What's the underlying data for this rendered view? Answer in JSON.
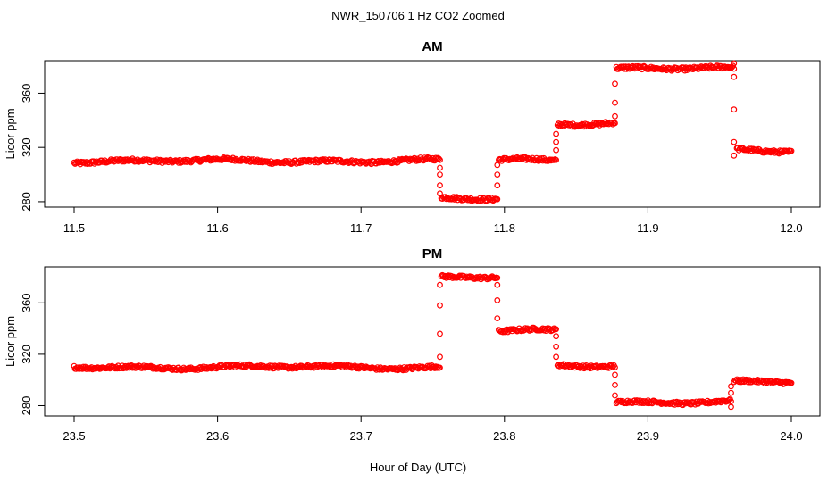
{
  "figure": {
    "title": "NWR_150706  1 Hz CO2 Zoomed",
    "xlabel": "Hour of Day (UTC)"
  },
  "chart_data": [
    {
      "type": "scatter",
      "title": "AM",
      "xlabel": "",
      "ylabel": "Licor ppm",
      "xlim": [
        11.5,
        12.0
      ],
      "ylim": [
        276,
        384
      ],
      "xticks": [
        "11.5",
        "11.6",
        "11.7",
        "11.8",
        "11.9",
        "12.0"
      ],
      "yticks": [
        "280",
        "320",
        "360"
      ],
      "marker": "open-circle",
      "color": "#ff0000",
      "segments": [
        {
          "x_start": 11.5,
          "x_end": 11.755,
          "y": 310
        },
        {
          "x_start": 11.756,
          "x_end": 11.795,
          "y": 282
        },
        {
          "x_start": 11.796,
          "x_end": 11.836,
          "y": 311
        },
        {
          "x_start": 11.837,
          "x_end": 11.877,
          "y": 338
        },
        {
          "x_start": 11.878,
          "x_end": 11.96,
          "y": 378
        },
        {
          "x_start": 11.962,
          "x_end": 12.0,
          "y": 318
        }
      ],
      "transitions": [
        {
          "x": 11.755,
          "y": [
            305,
            300,
            292,
            286
          ]
        },
        {
          "x": 11.795,
          "y": [
            292,
            300,
            307
          ]
        },
        {
          "x": 11.836,
          "y": [
            318,
            324,
            330
          ]
        },
        {
          "x": 11.877,
          "y": [
            343,
            353,
            367
          ]
        },
        {
          "x": 11.96,
          "y": [
            382,
            372,
            348,
            324,
            314
          ]
        }
      ]
    },
    {
      "type": "scatter",
      "title": "PM",
      "xlabel": "",
      "ylabel": "Licor ppm",
      "xlim": [
        23.5,
        24.0
      ],
      "ylim": [
        272,
        388
      ],
      "xticks": [
        "23.5",
        "23.6",
        "23.7",
        "23.8",
        "23.9",
        "24.0"
      ],
      "yticks": [
        "280",
        "320",
        "360"
      ],
      "marker": "open-circle",
      "color": "#ff0000",
      "segments": [
        {
          "x_start": 23.5,
          "x_end": 23.755,
          "y": 310
        },
        {
          "x_start": 23.756,
          "x_end": 23.795,
          "y": 380
        },
        {
          "x_start": 23.796,
          "x_end": 23.836,
          "y": 338
        },
        {
          "x_start": 23.837,
          "x_end": 23.877,
          "y": 311
        },
        {
          "x_start": 23.878,
          "x_end": 23.958,
          "y": 283
        },
        {
          "x_start": 23.96,
          "x_end": 24.0,
          "y": 298
        }
      ],
      "transitions": [
        {
          "x": 23.755,
          "y": [
            318,
            336,
            358,
            374
          ]
        },
        {
          "x": 23.795,
          "y": [
            374,
            362,
            348
          ]
        },
        {
          "x": 23.836,
          "y": [
            334,
            326,
            318
          ]
        },
        {
          "x": 23.877,
          "y": [
            304,
            296,
            288
          ]
        },
        {
          "x": 23.958,
          "y": [
            279,
            290,
            295
          ]
        }
      ]
    }
  ]
}
